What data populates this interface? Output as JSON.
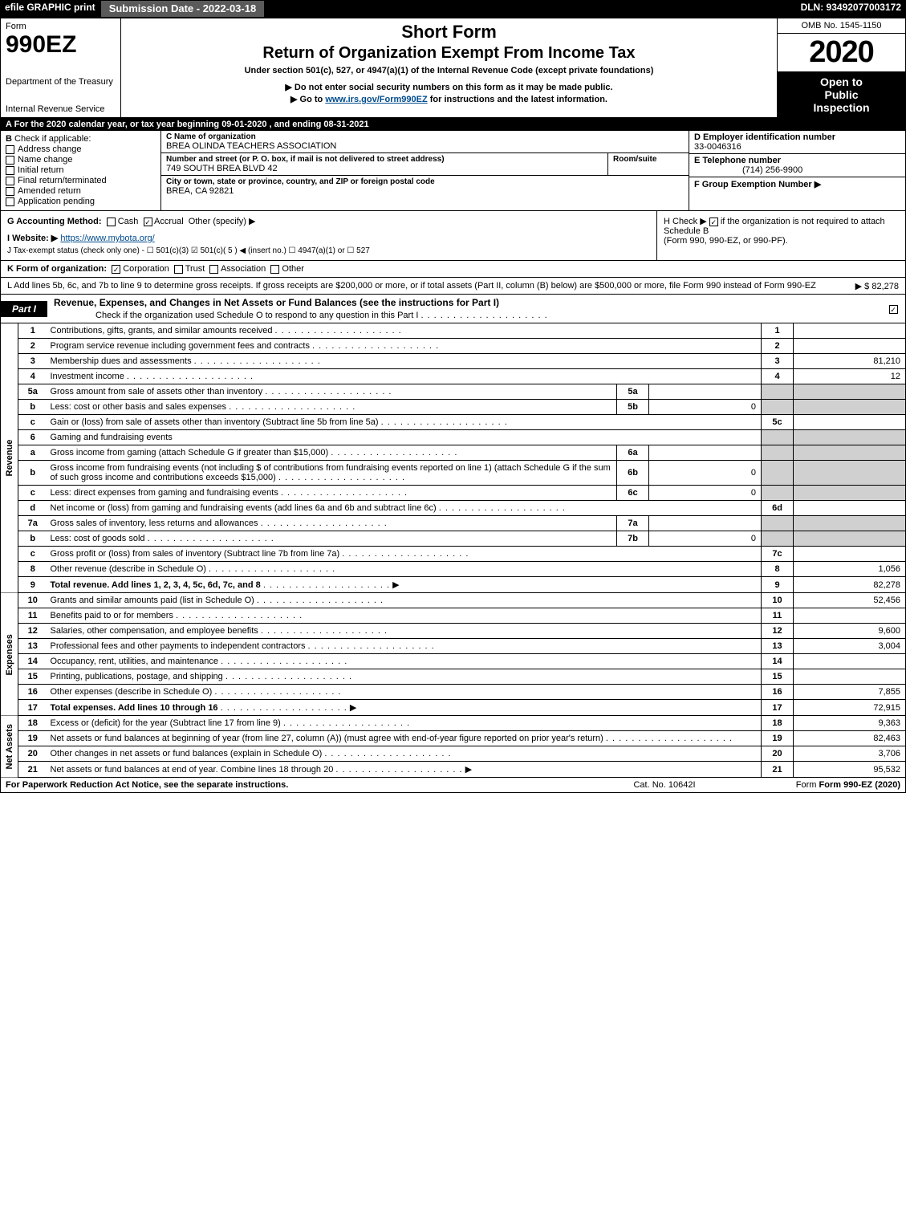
{
  "topbar": {
    "efile": "efile GRAPHIC print",
    "submission": "Submission Date - 2022-03-18",
    "dln": "DLN: 93492077003172"
  },
  "header": {
    "form_word": "Form",
    "form_number": "990EZ",
    "agency1": "Department of the Treasury",
    "agency2": "Internal Revenue Service",
    "short_form": "Short Form",
    "title_main": "Return of Organization Exempt From Income Tax",
    "subtitle": "Under section 501(c), 527, or 4947(a)(1) of the Internal Revenue Code (except private foundations)",
    "note": "▶ Do not enter social security numbers on this form as it may be made public.",
    "link_prefix": "▶ Go to ",
    "link_text": "www.irs.gov/Form990EZ",
    "link_suffix": " for instructions and the latest information.",
    "omb": "OMB No. 1545-1150",
    "year": "2020",
    "open1": "Open to",
    "open2": "Public",
    "open3": "Inspection"
  },
  "lineA": "A For the 2020 calendar year, or tax year beginning 09-01-2020 , and ending 08-31-2021",
  "boxB": {
    "title": "B",
    "check_label": "Check if applicable:",
    "options": [
      "Address change",
      "Name change",
      "Initial return",
      "Final return/terminated",
      "Amended return",
      "Application pending"
    ]
  },
  "boxC": {
    "label_org": "C Name of organization",
    "org": "BREA OLINDA TEACHERS ASSOCIATION",
    "label_addr1": "Number and street (or P. O. box, if mail is not delivered to street address)",
    "room_label": "Room/suite",
    "addr1": "749 SOUTH BREA BLVD 42",
    "label_addr2": "City or town, state or province, country, and ZIP or foreign postal code",
    "addr2": "BREA, CA  92821"
  },
  "boxD": {
    "label": "D Employer identification number",
    "value": "33-0046316",
    "e_label": "E Telephone number",
    "e_value": "(714) 256-9900",
    "f_label": "F Group Exemption Number  ▶",
    "f_value": ""
  },
  "lineG": {
    "prefix": "G Accounting Method:",
    "cash": "Cash",
    "accrual": "Accrual",
    "other": "Other (specify) ▶"
  },
  "lineH": {
    "text1": "H  Check ▶ ",
    "text2": " if the organization is not required to attach Schedule B",
    "text3": "(Form 990, 990-EZ, or 990-PF)."
  },
  "lineI": {
    "prefix": "I Website: ▶",
    "url": "https://www.mybota.org/"
  },
  "lineJ": "J Tax-exempt status (check only one) -  ☐ 501(c)(3)  ☑ 501(c)( 5 ) ◀ (insert no.)  ☐ 4947(a)(1) or  ☐ 527",
  "lineK": {
    "prefix": "K Form of organization:",
    "opts": [
      "Corporation",
      "Trust",
      "Association",
      "Other"
    ],
    "checked": 0
  },
  "lineL": {
    "text": "L Add lines 5b, 6c, and 7b to line 9 to determine gross receipts. If gross receipts are $200,000 or more, or if total assets (Part II, column (B) below) are $500,000 or more, file Form 990 instead of Form 990-EZ",
    "value": "▶ $ 82,278"
  },
  "partI": {
    "tab": "Part I",
    "title": "Revenue, Expenses, and Changes in Net Assets or Fund Balances (see the instructions for Part I)",
    "sub": "Check if the organization used Schedule O to respond to any question in this Part I",
    "checked": true
  },
  "sections": {
    "revenue_label": "Revenue",
    "expenses_label": "Expenses",
    "netassets_label": "Net Assets"
  },
  "rows": [
    {
      "n": "1",
      "desc": "Contributions, gifts, grants, and similar amounts received",
      "out": "1",
      "val": ""
    },
    {
      "n": "2",
      "desc": "Program service revenue including government fees and contracts",
      "out": "2",
      "val": ""
    },
    {
      "n": "3",
      "desc": "Membership dues and assessments",
      "out": "3",
      "val": "81,210"
    },
    {
      "n": "4",
      "desc": "Investment income",
      "out": "4",
      "val": "12"
    },
    {
      "n": "5a",
      "desc": "Gross amount from sale of assets other than inventory",
      "in": "5a",
      "inval": ""
    },
    {
      "n": "b",
      "desc": "Less: cost or other basis and sales expenses",
      "in": "5b",
      "inval": "0"
    },
    {
      "n": "c",
      "desc": "Gain or (loss) from sale of assets other than inventory (Subtract line 5b from line 5a)",
      "out": "5c",
      "val": ""
    },
    {
      "n": "6",
      "desc": "Gaming and fundraising events",
      "header": true
    },
    {
      "n": "a",
      "desc": "Gross income from gaming (attach Schedule G if greater than $15,000)",
      "in": "6a",
      "inval": ""
    },
    {
      "n": "b",
      "desc": "Gross income from fundraising events (not including $                   of contributions from fundraising events reported on line 1) (attach Schedule G if the sum of such gross income and contributions exceeds $15,000)",
      "in": "6b",
      "inval": "0"
    },
    {
      "n": "c",
      "desc": "Less: direct expenses from gaming and fundraising events",
      "in": "6c",
      "inval": "0"
    },
    {
      "n": "d",
      "desc": "Net income or (loss) from gaming and fundraising events (add lines 6a and 6b and subtract line 6c)",
      "out": "6d",
      "val": ""
    },
    {
      "n": "7a",
      "desc": "Gross sales of inventory, less returns and allowances",
      "in": "7a",
      "inval": ""
    },
    {
      "n": "b",
      "desc": "Less: cost of goods sold",
      "in": "7b",
      "inval": "0"
    },
    {
      "n": "c",
      "desc": "Gross profit or (loss) from sales of inventory (Subtract line 7b from line 7a)",
      "out": "7c",
      "val": ""
    },
    {
      "n": "8",
      "desc": "Other revenue (describe in Schedule O)",
      "out": "8",
      "val": "1,056"
    },
    {
      "n": "9",
      "desc": "Total revenue. Add lines 1, 2, 3, 4, 5c, 6d, 7c, and 8",
      "out": "9",
      "val": "82,278",
      "bold": true,
      "arrow": true
    }
  ],
  "exp_rows": [
    {
      "n": "10",
      "desc": "Grants and similar amounts paid (list in Schedule O)",
      "out": "10",
      "val": "52,456"
    },
    {
      "n": "11",
      "desc": "Benefits paid to or for members",
      "out": "11",
      "val": ""
    },
    {
      "n": "12",
      "desc": "Salaries, other compensation, and employee benefits",
      "out": "12",
      "val": "9,600"
    },
    {
      "n": "13",
      "desc": "Professional fees and other payments to independent contractors",
      "out": "13",
      "val": "3,004"
    },
    {
      "n": "14",
      "desc": "Occupancy, rent, utilities, and maintenance",
      "out": "14",
      "val": ""
    },
    {
      "n": "15",
      "desc": "Printing, publications, postage, and shipping",
      "out": "15",
      "val": ""
    },
    {
      "n": "16",
      "desc": "Other expenses (describe in Schedule O)",
      "out": "16",
      "val": "7,855"
    },
    {
      "n": "17",
      "desc": "Total expenses. Add lines 10 through 16",
      "out": "17",
      "val": "72,915",
      "bold": true,
      "arrow": true
    }
  ],
  "na_rows": [
    {
      "n": "18",
      "desc": "Excess or (deficit) for the year (Subtract line 17 from line 9)",
      "out": "18",
      "val": "9,363"
    },
    {
      "n": "19",
      "desc": "Net assets or fund balances at beginning of year (from line 27, column (A)) (must agree with end-of-year figure reported on prior year's return)",
      "out": "19",
      "val": "82,463"
    },
    {
      "n": "20",
      "desc": "Other changes in net assets or fund balances (explain in Schedule O)",
      "out": "20",
      "val": "3,706"
    },
    {
      "n": "21",
      "desc": "Net assets or fund balances at end of year. Combine lines 18 through 20",
      "out": "21",
      "val": "95,532",
      "arrow": true
    }
  ],
  "footer": {
    "left": "For Paperwork Reduction Act Notice, see the separate instructions.",
    "mid": "Cat. No. 10642I",
    "right": "Form 990-EZ (2020)"
  },
  "colors": {
    "black": "#000000",
    "darkgrey": "#5a5a5a",
    "shaded": "#d0d0d0",
    "link": "#004b8d"
  }
}
